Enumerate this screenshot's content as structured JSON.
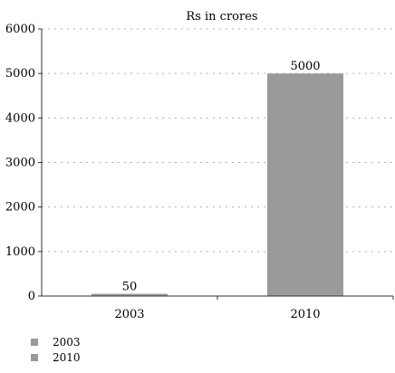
{
  "chart_data": {
    "type": "bar",
    "title": "Rs in crores",
    "categories": [
      "2003",
      "2010"
    ],
    "values": [
      50,
      5000
    ],
    "data_labels": [
      "50",
      "5000"
    ],
    "xlabel": "",
    "ylabel": "",
    "ylim": [
      0,
      6000
    ],
    "yticks": [
      0,
      1000,
      2000,
      3000,
      4000,
      5000,
      6000
    ],
    "ytick_labels": [
      "0",
      "1000",
      "2000",
      "3000",
      "4000",
      "5000",
      "6000"
    ],
    "grid": true,
    "legend": {
      "placement": "bottom-left",
      "entries": [
        "2003",
        "2010"
      ]
    },
    "bar_color": "#9a9a9a",
    "grid_color": "#b0b0b0",
    "axis_color": "#333333"
  }
}
